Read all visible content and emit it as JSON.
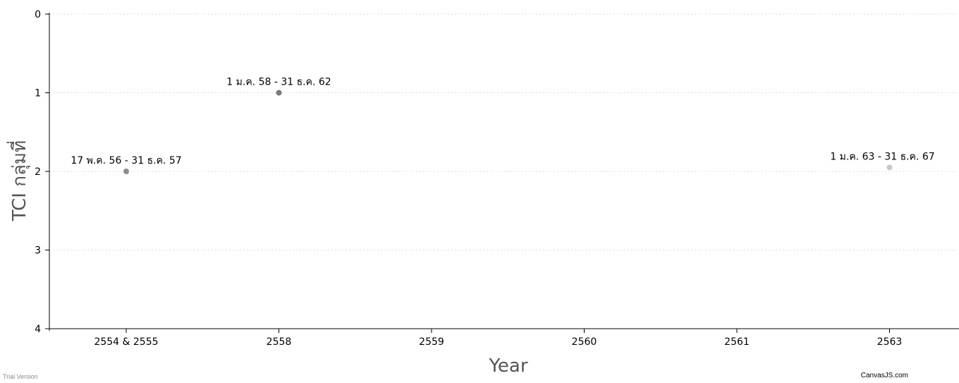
{
  "chart_data": {
    "type": "scatter",
    "title": "",
    "xlabel": "Year",
    "ylabel": "TCI กลุ่มที่",
    "categories": [
      "2554 & 2555",
      "2558",
      "2559",
      "2560",
      "2561",
      "2563"
    ],
    "y_ticks": [
      "0",
      "1",
      "2",
      "3",
      "4"
    ],
    "ylim": [
      4,
      0
    ],
    "y_reversed": true,
    "grid": true,
    "points": [
      {
        "x": "2554 & 2555",
        "y": 2,
        "label": "17 พ.ค. 56 - 31 ธ.ค. 57",
        "color": "#8c8c8c"
      },
      {
        "x": "2558",
        "y": 1,
        "label": "1 ม.ค. 58 - 31 ธ.ค. 62",
        "color": "#7a7a7a"
      },
      {
        "x": "2563",
        "y": 1.95,
        "label": "1 ม.ค. 63 - 31 ธ.ค. 67",
        "color": "#c8c8c8"
      }
    ]
  },
  "footer": {
    "trial_text": "Trial Version",
    "brand_text": "CanvasJS.com"
  }
}
